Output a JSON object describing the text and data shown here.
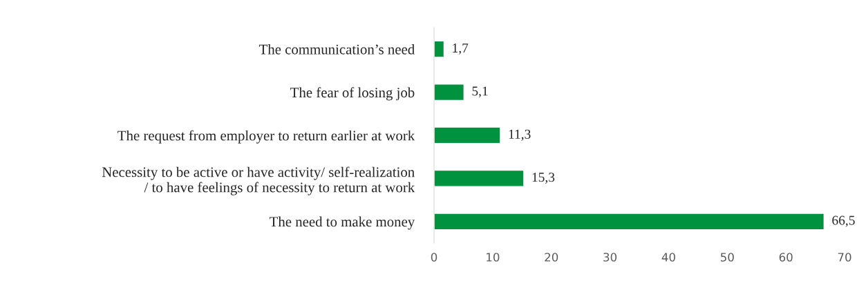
{
  "chart_data": {
    "type": "bar",
    "orientation": "horizontal",
    "categories": [
      "The communication’s need",
      "The fear of losing job",
      "The request from employer to return earlier at work",
      "Necessity to be active or have activity/ self-realization\n/ to have feelings of necessity to return at work",
      "The need to make money"
    ],
    "values": [
      1.7,
      5.1,
      11.3,
      15.3,
      66.5
    ],
    "value_labels": [
      "1,7",
      "5,1",
      "11,3",
      "15,3",
      "66,5"
    ],
    "color": "#00923f",
    "xlim": [
      0,
      70
    ],
    "xticks": [
      0,
      10,
      20,
      30,
      40,
      50,
      60,
      70
    ],
    "grid": false,
    "legend": false
  }
}
